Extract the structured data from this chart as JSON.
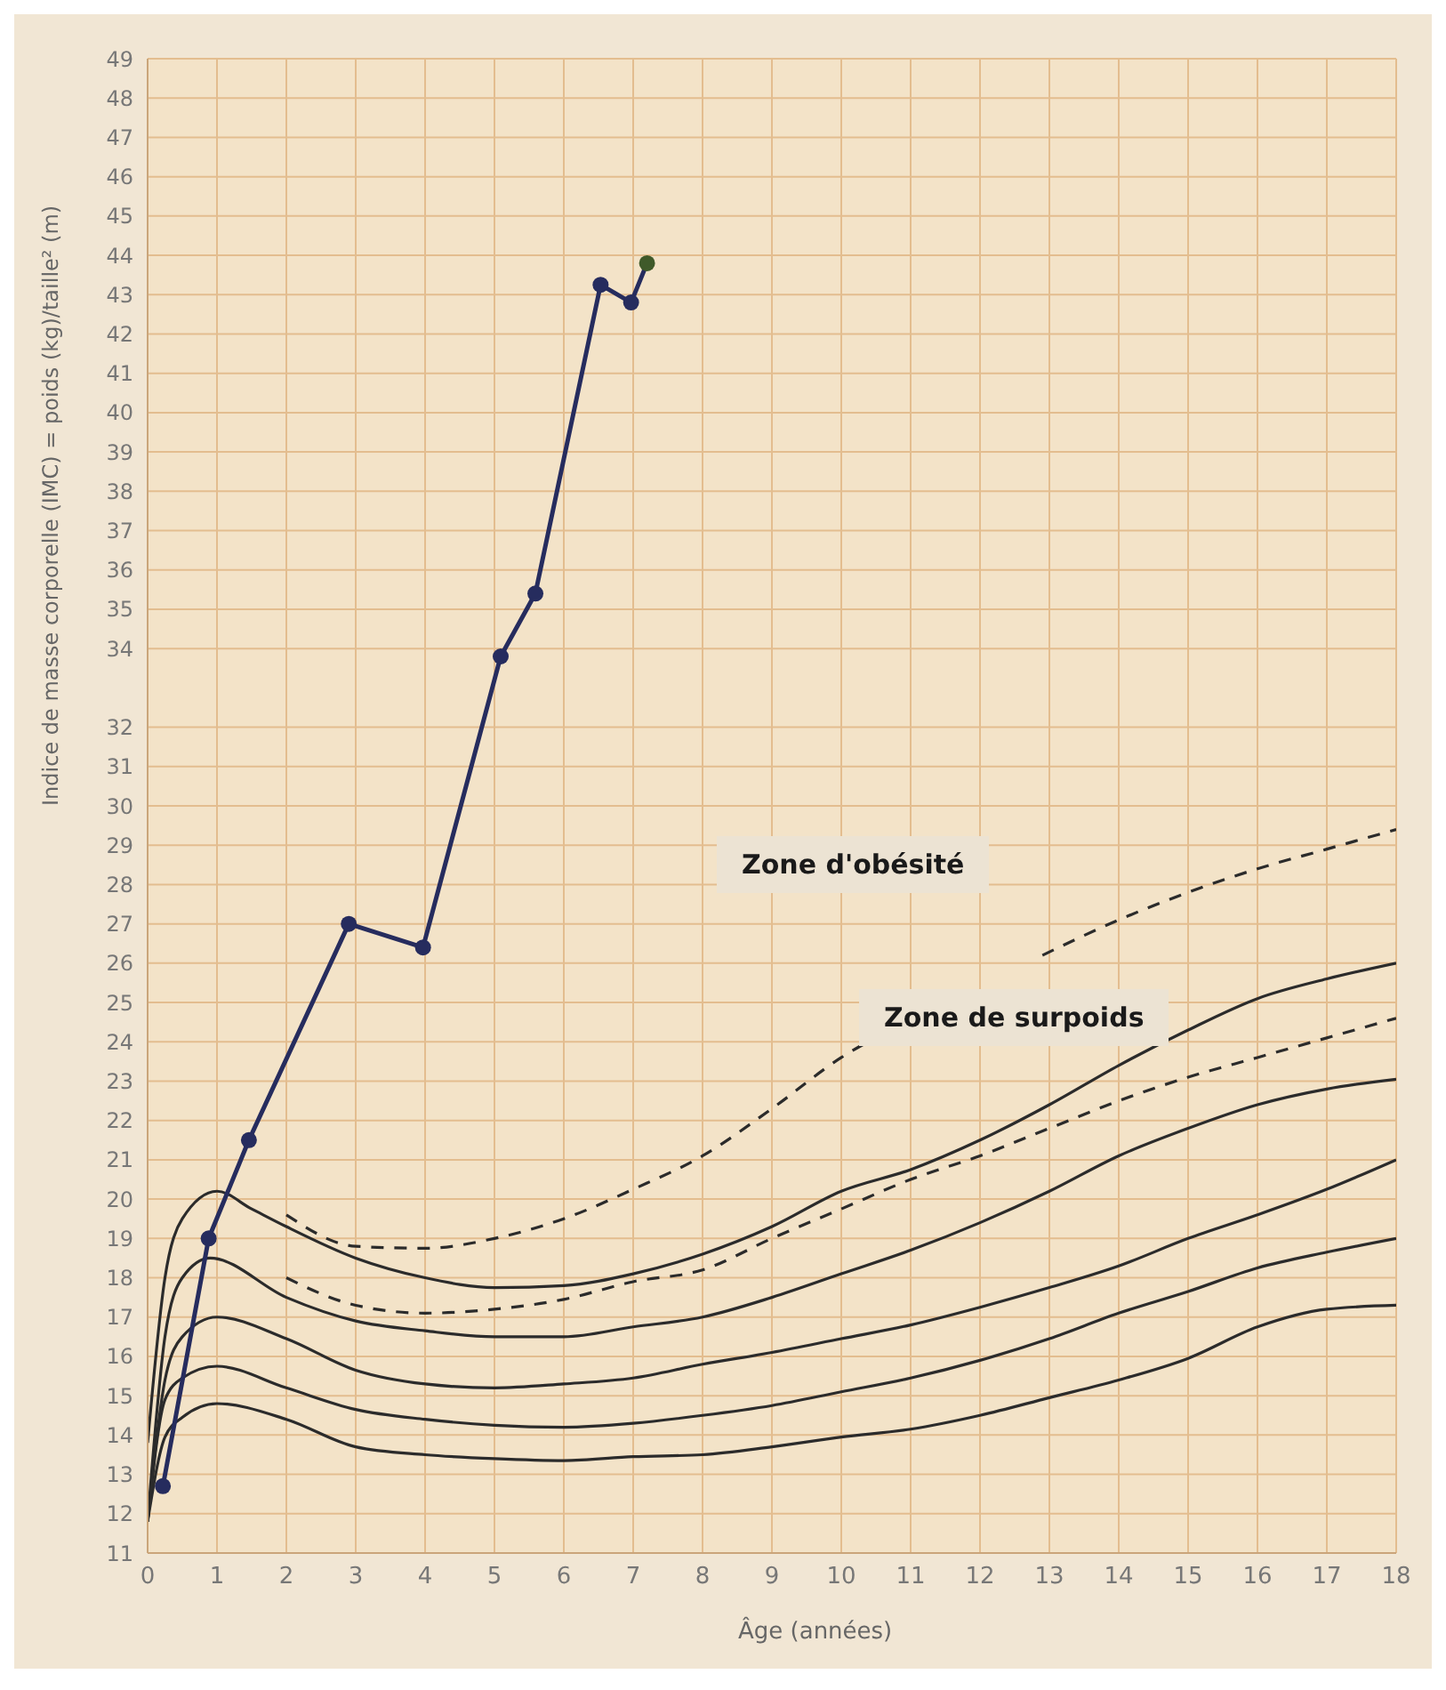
{
  "chart_data": {
    "type": "line",
    "xlabel": "Âge (années)",
    "ylabel": "Indice de masse corporelle (IMC) = poids (kg)/taille² (m)",
    "xlim": [
      0,
      18
    ],
    "xticks": [
      0,
      1,
      2,
      3,
      4,
      5,
      6,
      7,
      8,
      9,
      10,
      11,
      12,
      13,
      14,
      15,
      16,
      17,
      18
    ],
    "ylim": [
      11,
      49
    ],
    "yticks": [
      11,
      12,
      13,
      14,
      15,
      16,
      17,
      18,
      19,
      20,
      21,
      22,
      23,
      24,
      25,
      26,
      27,
      28,
      29,
      30,
      31,
      32,
      34,
      35,
      36,
      37,
      38,
      39,
      40,
      41,
      42,
      43,
      44,
      45,
      46,
      47,
      48,
      49
    ],
    "grid": true,
    "annotations": [
      "Zone d'obésité",
      "Zone de surpoids"
    ],
    "series": [
      {
        "color": "#2b2b2b",
        "line_style": "solid",
        "marker": "none",
        "x": [
          0,
          0.25,
          0.5,
          1,
          1.5,
          2,
          3,
          4,
          5,
          6,
          7,
          8,
          9,
          10,
          11,
          12,
          13,
          14,
          15,
          16,
          17,
          18
        ],
        "values": [
          13.8,
          18,
          19.5,
          20.2,
          19.75,
          19.3,
          18.5,
          18,
          17.75,
          17.8,
          18.1,
          18.6,
          19.3,
          20.2,
          20.75,
          21.5,
          22.4,
          23.4,
          24.3,
          25.1,
          25.6,
          26
        ]
      },
      {
        "color": "#2b2b2b",
        "line_style": "dashed",
        "marker": "none",
        "x": [
          2,
          3,
          4,
          5,
          6,
          7,
          8,
          9,
          10,
          10.7,
          11,
          12,
          12.9,
          14,
          15,
          16,
          17,
          18
        ],
        "values": [
          19.6,
          18.8,
          18.75,
          19,
          19.5,
          20.25,
          21.1,
          22.3,
          23.6,
          24.3,
          null,
          null,
          26.2,
          27.1,
          27.8,
          28.4,
          28.9,
          29.4
        ]
      },
      {
        "color": "#2b2b2b",
        "line_style": "dashed",
        "marker": "none",
        "x": [
          2,
          3,
          4,
          5,
          6,
          7,
          8,
          9,
          10,
          11,
          12,
          13,
          14,
          15,
          16,
          17,
          18
        ],
        "values": [
          18,
          17.3,
          17.1,
          17.2,
          17.45,
          17.9,
          18.2,
          19,
          19.75,
          20.5,
          21.1,
          21.8,
          22.5,
          23.1,
          23.6,
          24.1,
          24.6
        ]
      },
      {
        "color": "#2b2b2b",
        "line_style": "solid",
        "marker": "none",
        "x": [
          0,
          0.25,
          0.5,
          0.9,
          2,
          3,
          4,
          5,
          6,
          7,
          8,
          9,
          10,
          11,
          12,
          13,
          14,
          15,
          16,
          17,
          18
        ],
        "values": [
          11.8,
          16.5,
          18,
          18.5,
          17.5,
          16.9,
          16.65,
          16.5,
          16.5,
          16.75,
          17,
          17.5,
          18.1,
          18.7,
          19.4,
          20.2,
          21.1,
          21.8,
          22.4,
          22.8,
          23.05
        ]
      },
      {
        "color": "#2b2b2b",
        "line_style": "solid",
        "marker": "none",
        "x": [
          0,
          0.25,
          0.5,
          1,
          2,
          3,
          4,
          5,
          6,
          7,
          8,
          9,
          10,
          11,
          12,
          13,
          14,
          15,
          16,
          17,
          18
        ],
        "values": [
          11.8,
          15.4,
          16.5,
          17,
          16.45,
          15.65,
          15.3,
          15.2,
          15.3,
          15.45,
          15.8,
          16.1,
          16.45,
          16.8,
          17.25,
          17.75,
          18.3,
          19,
          19.6,
          20.25,
          21
        ]
      },
      {
        "color": "#2b2b2b",
        "line_style": "solid",
        "marker": "none",
        "x": [
          0,
          0.25,
          0.5,
          1,
          2,
          3,
          4,
          5,
          6,
          7,
          8,
          9,
          10,
          11,
          12,
          13,
          14,
          15,
          16,
          17,
          18
        ],
        "values": [
          11.8,
          14.9,
          15.45,
          15.75,
          15.2,
          14.65,
          14.4,
          14.25,
          14.2,
          14.3,
          14.5,
          14.75,
          15.1,
          15.45,
          15.9,
          16.45,
          17.1,
          17.65,
          18.25,
          18.65,
          19
        ]
      },
      {
        "color": "#2b2b2b",
        "line_style": "solid",
        "marker": "none",
        "x": [
          0,
          0.25,
          0.5,
          1,
          2,
          3,
          4,
          5,
          6,
          7,
          8,
          9,
          10,
          11,
          12,
          13,
          14,
          15,
          16,
          17,
          18
        ],
        "values": [
          11.8,
          13.95,
          14.45,
          14.8,
          14.4,
          13.7,
          13.5,
          13.4,
          13.35,
          13.45,
          13.5,
          13.7,
          13.95,
          14.15,
          14.5,
          14.95,
          15.4,
          15.95,
          16.75,
          17.2,
          17.3
        ]
      },
      {
        "color": "#262c5e",
        "line_style": "solid",
        "marker": "circle",
        "x": [
          0.22,
          0.88,
          1.46,
          2.9,
          3.97,
          5.09,
          5.59,
          6.53,
          6.97,
          7.2
        ],
        "values": [
          12.7,
          19,
          21.5,
          27,
          26.4,
          33.8,
          35.4,
          43.25,
          42.8,
          43.8
        ],
        "colors": [
          "#262c5e",
          "#262c5e",
          "#262c5e",
          "#262c5e",
          "#262c5e",
          "#262c5e",
          "#262c5e",
          "#262c5e",
          "#262c5e",
          "#3f5a2a"
        ]
      }
    ]
  }
}
